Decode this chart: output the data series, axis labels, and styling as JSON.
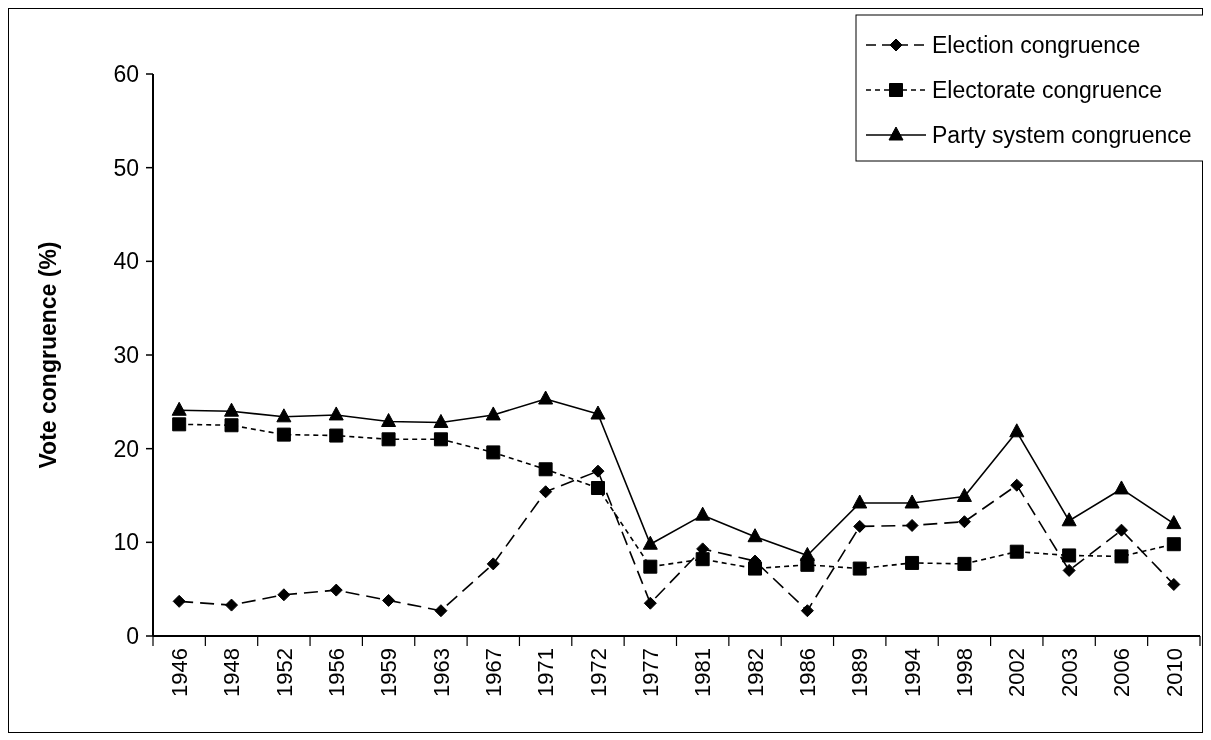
{
  "chart_data": {
    "type": "line",
    "ylabel": "Vote congruence (%)",
    "categories": [
      "1946",
      "1948",
      "1952",
      "1956",
      "1959",
      "1963",
      "1967",
      "1971",
      "1972",
      "1977",
      "1981",
      "1982",
      "1986",
      "1989",
      "1994",
      "1998",
      "2002",
      "2003",
      "2006",
      "2010"
    ],
    "ylim": [
      0,
      60
    ],
    "yticks": [
      0,
      10,
      20,
      30,
      40,
      50,
      60
    ],
    "grid": false,
    "legend": "top right",
    "series": [
      {
        "name": "Election congruence",
        "color": "#000000",
        "marker": "diamond",
        "line_style": "dashed",
        "values": [
          3.7,
          3.3,
          4.4,
          4.9,
          3.8,
          2.7,
          7.7,
          15.4,
          17.6,
          3.5,
          9.3,
          8.0,
          2.7,
          11.7,
          11.8,
          12.2,
          16.1,
          7.0,
          11.3,
          5.5
        ]
      },
      {
        "name": "Electorate congruence",
        "color": "#000000",
        "marker": "square",
        "line_style": "dotted",
        "values": [
          22.6,
          22.5,
          21.5,
          21.4,
          21.0,
          21.0,
          19.6,
          17.8,
          15.8,
          7.4,
          8.2,
          7.2,
          7.6,
          7.2,
          7.8,
          7.7,
          9.0,
          8.6,
          8.5,
          9.8
        ]
      },
      {
        "name": "Party system congruence",
        "color": "#000000",
        "marker": "triangle",
        "line_style": "solid",
        "values": [
          24.1,
          24.0,
          23.4,
          23.6,
          22.9,
          22.8,
          23.6,
          25.3,
          23.7,
          9.8,
          12.9,
          10.6,
          8.6,
          14.2,
          14.2,
          14.9,
          21.8,
          12.3,
          15.7,
          12.0
        ]
      }
    ]
  }
}
